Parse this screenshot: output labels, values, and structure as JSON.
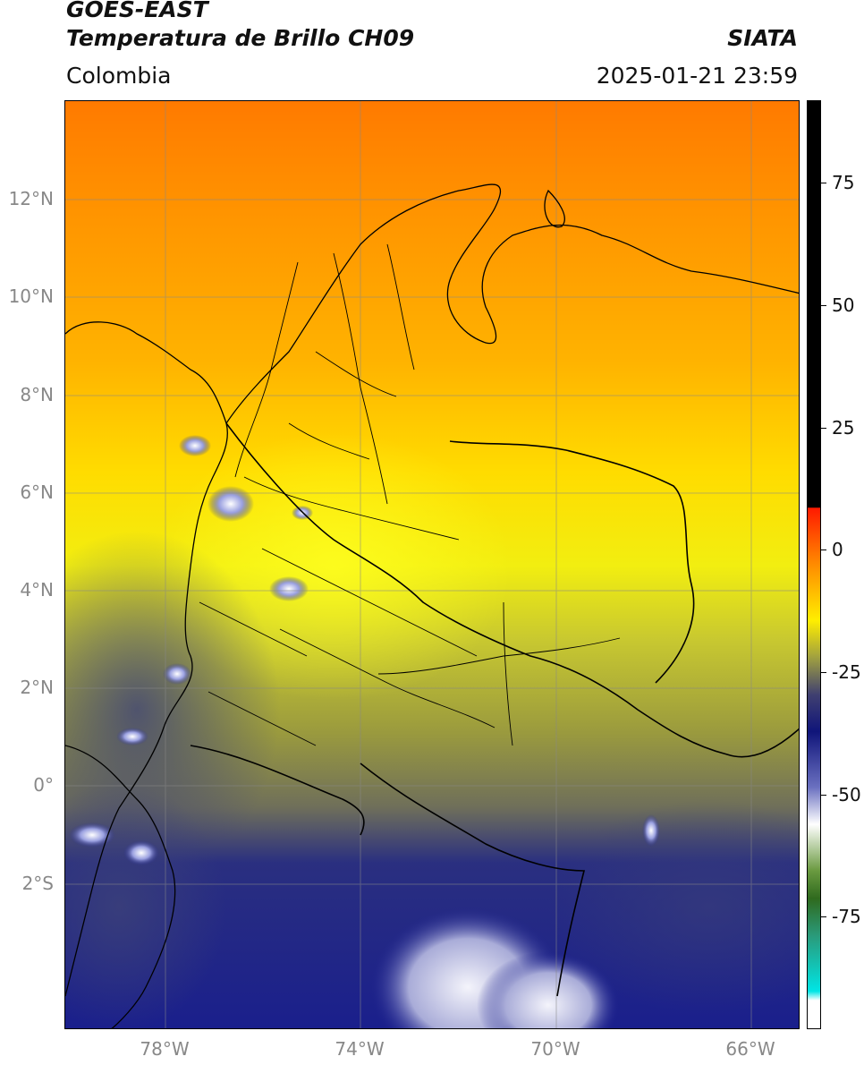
{
  "header": {
    "title_line1": "GOES-EAST",
    "title_line2": "Temperatura de Brillo CH09",
    "organization": "SIATA",
    "region": "Colombia",
    "timestamp": "2025-01-21 23:59"
  },
  "map": {
    "lat_labels": [
      "12°N",
      "10°N",
      "8°N",
      "6°N",
      "4°N",
      "2°N",
      "0°",
      "2°S"
    ],
    "lon_labels": [
      "78°W",
      "74°W",
      "70°W",
      "66°W"
    ],
    "colors": {
      "north": "#ff8c00",
      "mid": "#ffe600",
      "south": "#8a8a3a",
      "cold": "#1a1f8c",
      "coldest": "#e8e8f5",
      "border": "#000000",
      "grid": "#888888"
    }
  },
  "colorbar": {
    "tick_labels": [
      "75",
      "50",
      "25",
      "0",
      "-25",
      "-50",
      "-75"
    ]
  }
}
